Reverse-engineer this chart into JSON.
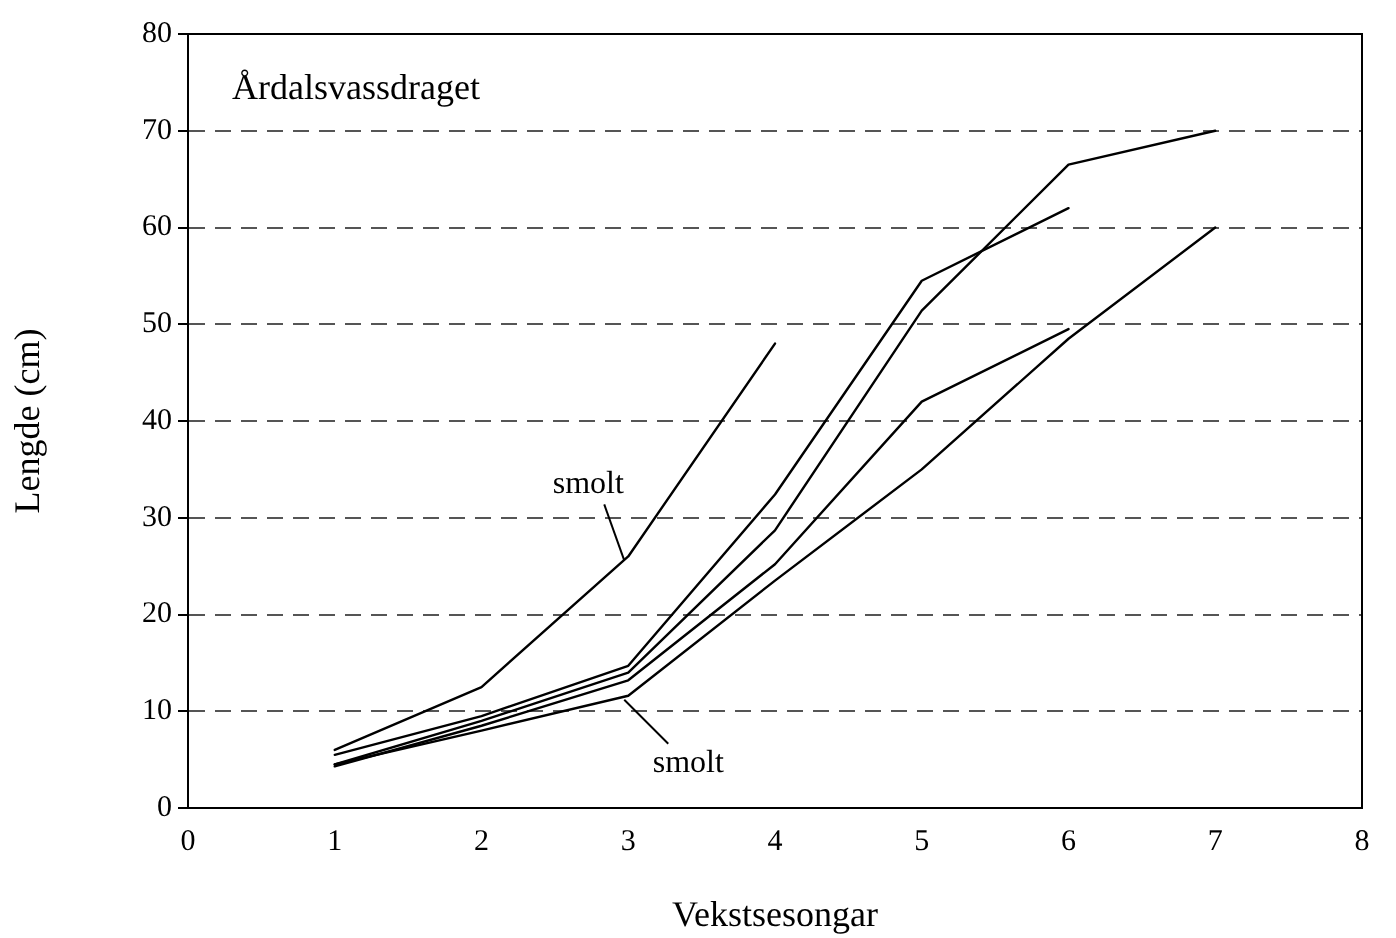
{
  "chart_data": {
    "type": "line",
    "xlabel": "Vekstsesongar",
    "ylabel": "Lengde (cm)",
    "series": [
      {
        "color": "#000000",
        "x": [
          1,
          2,
          3,
          4
        ],
        "values": [
          6,
          12.5,
          26,
          48
        ]
      },
      {
        "color": "#000000",
        "x": [
          1,
          2,
          3,
          4,
          5,
          6
        ],
        "values": [
          5.5,
          9.5,
          14.7,
          32.4,
          54.5,
          62
        ]
      },
      {
        "color": "#000000",
        "x": [
          1,
          2,
          3,
          4,
          5,
          6,
          7
        ],
        "values": [
          4.5,
          9,
          14,
          28.7,
          51.4,
          66.5,
          70
        ]
      },
      {
        "color": "#000000",
        "x": [
          1,
          2,
          3,
          4,
          5,
          6
        ],
        "values": [
          4.3,
          8.5,
          13.2,
          25.2,
          42,
          49.5
        ]
      },
      {
        "color": "#000000",
        "x": [
          1,
          2,
          3,
          4,
          5,
          6,
          7
        ],
        "values": [
          4.5,
          8,
          11.6,
          23.5,
          35,
          48.5,
          60
        ]
      }
    ],
    "xlim": [
      0,
      8
    ],
    "xticks": [
      0,
      1,
      2,
      3,
      4,
      5,
      6,
      7,
      8
    ],
    "ylim": [
      0,
      80
    ],
    "yticks": [
      0,
      10,
      20,
      30,
      40,
      50,
      60,
      70,
      80
    ],
    "grid": "y",
    "legend": false,
    "marker": "none",
    "line_style": "solid",
    "annotations": [
      "Årdalsvassdraget",
      {
        "text": "smolt",
        "x": 3,
        "y": 26
      },
      {
        "text": "smolt",
        "x": 3,
        "y": 11.6
      }
    ]
  }
}
